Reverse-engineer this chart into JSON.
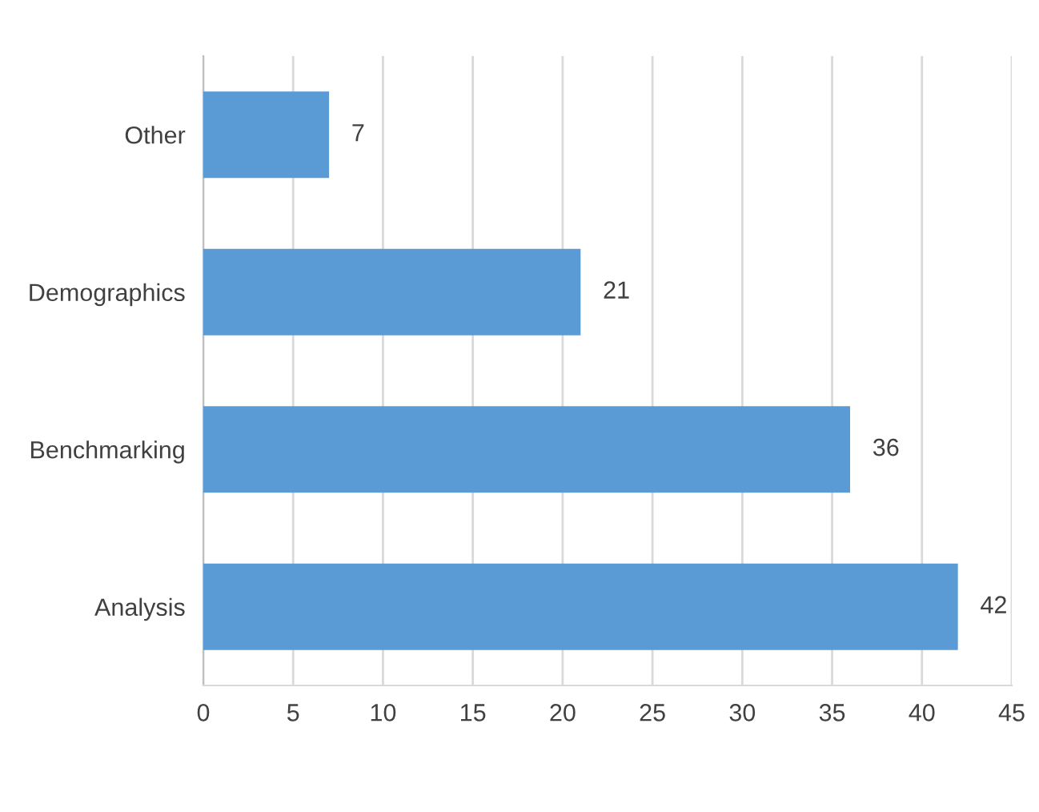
{
  "chart_data": {
    "type": "bar",
    "orientation": "horizontal",
    "categories": [
      "Other",
      "Demographics",
      "Benchmarking",
      "Analysis"
    ],
    "values": [
      7,
      21,
      36,
      42
    ],
    "color": "#5b9bd5",
    "xlim": [
      0,
      45
    ],
    "xticks": [
      0,
      5,
      10,
      15,
      20,
      25,
      30,
      35,
      40,
      45
    ],
    "grid": "x",
    "data_labels": true
  }
}
